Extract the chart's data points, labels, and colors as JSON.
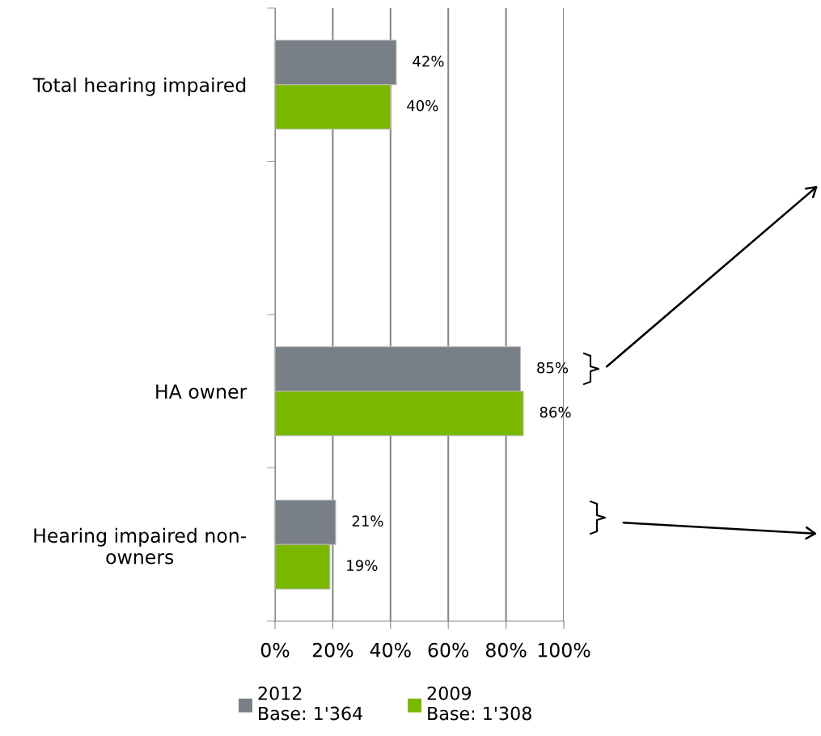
{
  "chart_data": {
    "type": "bar",
    "orientation": "horizontal",
    "categories": [
      "Total hearing impaired",
      null,
      "HA owner",
      "Hearing impaired non-\nowners"
    ],
    "series": [
      {
        "name": "2012\nBase: 1'364",
        "color": "#787f86",
        "values": [
          42,
          null,
          85,
          21
        ],
        "value_labels": [
          "42%",
          null,
          "85%",
          "21%"
        ]
      },
      {
        "name": "2009\nBase: 1'308",
        "color": "#7ab800",
        "values": [
          40,
          null,
          86,
          19
        ],
        "value_labels": [
          "40%",
          null,
          "86%",
          "19%"
        ]
      }
    ],
    "xlim": [
      0,
      100
    ],
    "xticks": [
      {
        "value": 0,
        "label": "0%"
      },
      {
        "value": 20,
        "label": "20%"
      },
      {
        "value": 40,
        "label": "40%"
      },
      {
        "value": 60,
        "label": "60%"
      },
      {
        "value": 80,
        "label": "80%"
      },
      {
        "value": 100,
        "label": "100%"
      }
    ],
    "grid": "x",
    "legend": "bottom"
  }
}
